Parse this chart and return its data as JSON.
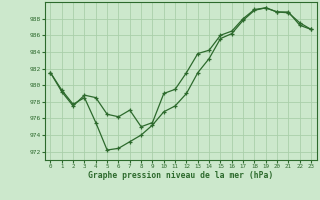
{
  "line1_x": [
    0,
    1,
    2,
    3,
    4,
    5,
    6,
    7,
    8,
    9,
    10,
    11,
    12,
    13,
    14,
    15,
    16,
    17,
    18,
    19,
    20,
    21,
    22,
    23
  ],
  "line1_y": [
    981.5,
    979.4,
    977.7,
    978.5,
    975.5,
    972.2,
    972.4,
    973.2,
    974.0,
    975.2,
    976.8,
    977.5,
    979.0,
    981.5,
    983.2,
    985.6,
    986.2,
    987.8,
    989.0,
    989.3,
    988.8,
    988.7,
    987.5,
    986.7
  ],
  "line2_x": [
    0,
    1,
    2,
    3,
    4,
    5,
    6,
    7,
    8,
    9,
    10,
    11,
    12,
    13,
    14,
    15,
    16,
    17,
    18,
    19,
    20,
    21,
    22,
    23
  ],
  "line2_y": [
    981.5,
    979.2,
    977.5,
    978.8,
    978.5,
    976.5,
    976.2,
    977.0,
    975.0,
    975.5,
    979.0,
    979.5,
    981.5,
    983.8,
    984.2,
    986.0,
    986.5,
    988.0,
    989.1,
    989.3,
    988.8,
    988.8,
    987.2,
    986.7
  ],
  "line_color": "#2d6a2d",
  "bg_color": "#cce8cc",
  "grid_color": "#aacfaa",
  "xlabel": "Graphe pression niveau de la mer (hPa)",
  "ylim": [
    971.0,
    990.0
  ],
  "xlim": [
    -0.5,
    23.5
  ],
  "yticks": [
    972,
    974,
    976,
    978,
    980,
    982,
    984,
    986,
    988
  ],
  "xticks": [
    0,
    1,
    2,
    3,
    4,
    5,
    6,
    7,
    8,
    9,
    10,
    11,
    12,
    13,
    14,
    15,
    16,
    17,
    18,
    19,
    20,
    21,
    22,
    23
  ]
}
